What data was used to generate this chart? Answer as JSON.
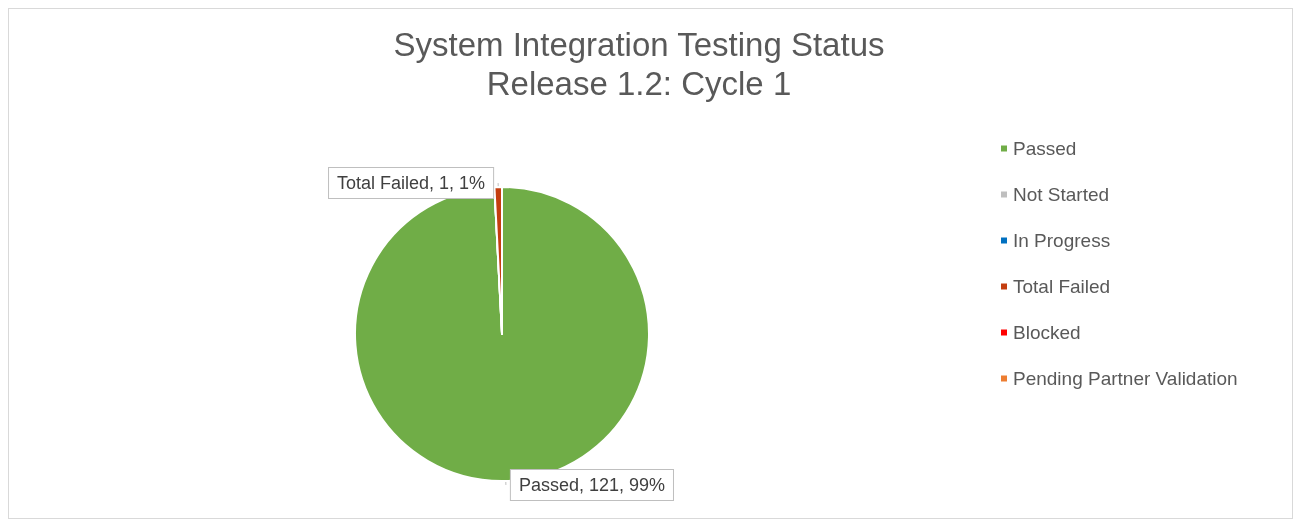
{
  "chart_data": {
    "type": "pie",
    "title": "System Integration Testing Status",
    "subtitle": "Release 1.2: Cycle 1",
    "categories": [
      "Passed",
      "Not Started",
      "In Progress",
      "Total Failed",
      "Blocked",
      "Pending Partner Validation"
    ],
    "values": [
      121,
      0,
      0,
      1,
      0,
      0
    ],
    "colors": [
      "#70ad47",
      "#bfbfbf",
      "#0070c0",
      "#c43e0f",
      "#ff0000",
      "#ed7d31"
    ],
    "value_labels": [
      "Passed, 121, 99%",
      null,
      null,
      "Total Failed, 1, 1%",
      null,
      null
    ],
    "legend": "right"
  }
}
